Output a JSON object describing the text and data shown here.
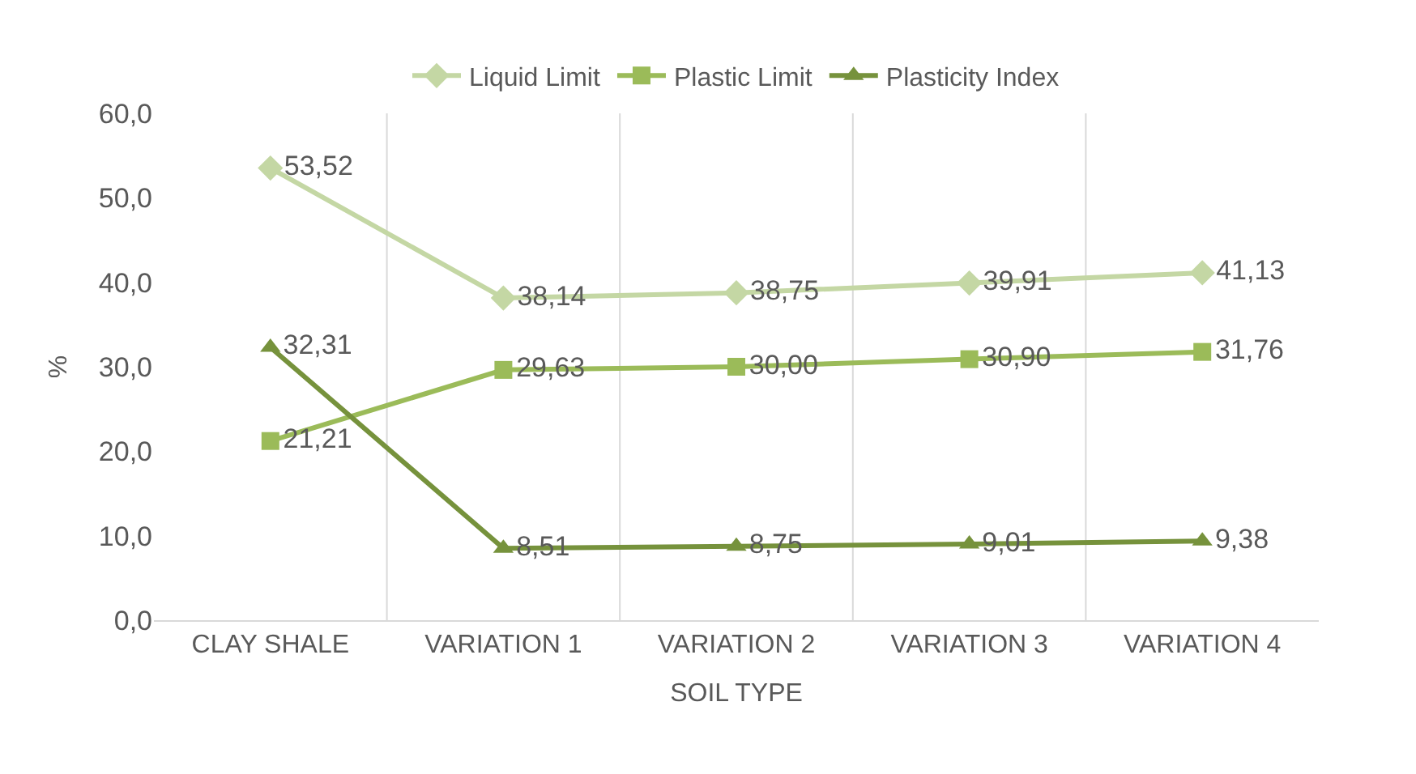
{
  "chart_data": {
    "type": "line",
    "xlabel": "SOIL TYPE",
    "ylabel": "%",
    "categories": [
      "CLAY SHALE",
      "VARIATION 1",
      "VARIATION 2",
      "VARIATION 3",
      "VARIATION 4"
    ],
    "ylim": [
      0,
      60
    ],
    "yticks": [
      {
        "value": 0,
        "label": "0,0"
      },
      {
        "value": 10,
        "label": "10,0"
      },
      {
        "value": 20,
        "label": "20,0"
      },
      {
        "value": 30,
        "label": "30,0"
      },
      {
        "value": 40,
        "label": "40,0"
      },
      {
        "value": 50,
        "label": "50,0"
      },
      {
        "value": 60,
        "label": "60,0"
      }
    ],
    "grid": "x",
    "legend": "top",
    "line_style": "solid",
    "series": [
      {
        "name": "Liquid Limit",
        "color": "#c4d7a4",
        "marker": "diamond",
        "values": [
          53.52,
          38.14,
          38.75,
          39.91,
          41.13
        ],
        "value_labels": [
          "53,52",
          "38,14",
          "38,75",
          "39,91",
          "41,13"
        ]
      },
      {
        "name": "Plastic Limit",
        "color": "#9bbb59",
        "marker": "square",
        "values": [
          21.21,
          29.63,
          30.0,
          30.9,
          31.76
        ],
        "value_labels": [
          "21,21",
          "29,63",
          "30,00",
          "30,90",
          "31,76"
        ]
      },
      {
        "name": "Plasticity Index",
        "color": "#76923c",
        "marker": "triangle",
        "values": [
          32.31,
          8.51,
          8.75,
          9.01,
          9.38
        ],
        "value_labels": [
          "32,31",
          "8,51",
          "8,75",
          "9,01",
          "9,38"
        ]
      }
    ]
  }
}
